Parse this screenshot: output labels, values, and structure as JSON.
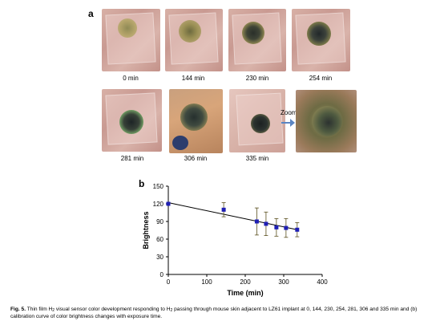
{
  "panel_a": {
    "letter": "a",
    "images": [
      {
        "label": "0 min"
      },
      {
        "label": "144 min"
      },
      {
        "label": "230 min"
      },
      {
        "label": "254 min"
      },
      {
        "label": "281 min"
      },
      {
        "label": "306 min"
      },
      {
        "label": "335 min"
      }
    ],
    "zoom_label": "Zoom in"
  },
  "panel_b": {
    "letter": "b"
  },
  "chart_data": {
    "type": "scatter",
    "x": [
      0,
      144,
      230,
      254,
      281,
      306,
      335
    ],
    "y": [
      120,
      110,
      90,
      86,
      80,
      79,
      76
    ],
    "yerr": [
      0,
      12,
      23,
      20,
      15,
      16,
      12
    ],
    "fit_line": {
      "x": [
        0,
        335
      ],
      "y": [
        122,
        76
      ]
    },
    "xlabel": "Time (min)",
    "ylabel": "Brightness",
    "xlim": [
      0,
      400
    ],
    "ylim": [
      0,
      150
    ],
    "xticks": [
      "0",
      "100",
      "200",
      "300",
      "400"
    ],
    "yticks": [
      "0",
      "30",
      "60",
      "90",
      "120",
      "150"
    ],
    "marker_color": "#1f1fb4",
    "errorbar_color": "#5a4f1e",
    "line_color": "#000000",
    "grid": false
  },
  "caption": {
    "label": "Fig. 5.",
    "text_before_sub": " Thin film H",
    "sub1": "2",
    "text_mid": " visual sensor color development responding to H",
    "sub2": "2",
    "text_after": " passing through mouse skin adjacent to LZ61 implant at 0, 144, 230, 254, 281, 306 and 335 min and (b) calibration curve of color brightness changes with exposure time."
  }
}
